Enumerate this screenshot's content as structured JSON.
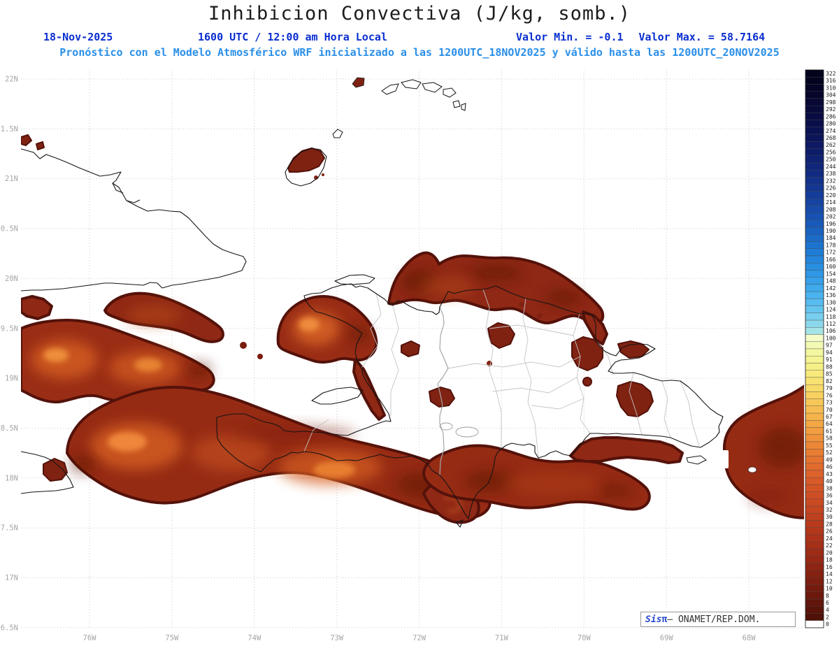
{
  "header": {
    "title": "Inhibicion Convectiva (J/kg, somb.)",
    "run_date": "18-Nov-2025",
    "valid_time": "1600 UTC / 12:00 am Hora Local",
    "min_label": "Valor Min. = -0.1",
    "max_label": "Valor Max. = 58.7164",
    "forecast_line": "Pronóstico con el Modelo Atmosférico WRF inicializado a las 1200UTC_18NOV2025 y válido hasta las  1200UTC_20NOV2025"
  },
  "axes": {
    "lat_ticks": [
      "22N",
      "21.5N",
      "21N",
      "20.5N",
      "20N",
      "19.5N",
      "19N",
      "18.5N",
      "18N",
      "17.5N",
      "17N",
      "16.5N"
    ],
    "lon_ticks": [
      "76W",
      "75W",
      "74W",
      "73W",
      "72W",
      "71W",
      "70W",
      "69W",
      "68W"
    ]
  },
  "colorbar": {
    "values": [
      322,
      316,
      310,
      304,
      298,
      292,
      286,
      280,
      274,
      268,
      262,
      256,
      250,
      244,
      238,
      232,
      226,
      220,
      214,
      208,
      202,
      196,
      190,
      184,
      178,
      172,
      166,
      160,
      154,
      148,
      142,
      136,
      130,
      124,
      118,
      112,
      106,
      100,
      97,
      94,
      91,
      88,
      85,
      82,
      79,
      76,
      73,
      70,
      67,
      64,
      61,
      58,
      55,
      52,
      49,
      46,
      43,
      40,
      38,
      36,
      34,
      32,
      30,
      28,
      26,
      24,
      22,
      20,
      18,
      16,
      14,
      12,
      10,
      8,
      6,
      4,
      2,
      0
    ],
    "colors": [
      "#03031c",
      "#040420",
      "#050526",
      "#06062c",
      "#070833",
      "#080a3a",
      "#090c42",
      "#0a0f4a",
      "#0b1252",
      "#0c155a",
      "#0d1962",
      "#0e1d6a",
      "#0f2172",
      "#10267a",
      "#112b82",
      "#12318a",
      "#133792",
      "#143d9a",
      "#1544a2",
      "#164baa",
      "#1752b2",
      "#185ab9",
      "#1962c0",
      "#1b6bc7",
      "#1d74ce",
      "#207dd5",
      "#2486db",
      "#298fe0",
      "#2f98e5",
      "#36a1e9",
      "#3faaec",
      "#4ab3ee",
      "#57bcef",
      "#66c5ef",
      "#77ceee",
      "#8bd8ec",
      "#a5e4e6",
      "#f5fbc9",
      "#f1f9b2",
      "#f3f7a0",
      "#f5f492",
      "#f6ef86",
      "#f7e97b",
      "#f8e272",
      "#f8da69",
      "#f8d161",
      "#f7c859",
      "#f6be52",
      "#f5b34b",
      "#f3a845",
      "#f19d40",
      "#ef923b",
      "#ec8737",
      "#e97d33",
      "#e57330",
      "#e16a2d",
      "#dd622b",
      "#d85a28",
      "#d45426",
      "#cf4f24",
      "#ca4a22",
      "#c44520",
      "#bf401e",
      "#b93b1c",
      "#b3371b",
      "#ac3319",
      "#a52f17",
      "#9e2b16",
      "#962814",
      "#8e2413",
      "#862111",
      "#7e1e10",
      "#751b0e",
      "#6c180c",
      "#62160b",
      "#591309",
      "#4f1108",
      "#ffffff"
    ]
  },
  "attribution": {
    "brand": "Sis",
    "pi": "π",
    "text": "– ONAMET/REP.DOM."
  }
}
